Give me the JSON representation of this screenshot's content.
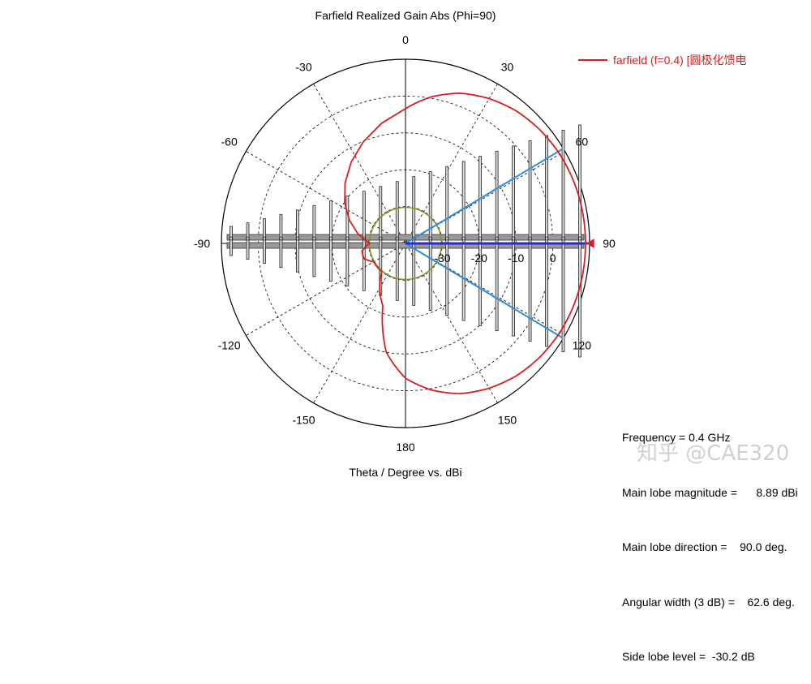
{
  "chart_data": {
    "type": "polar-line",
    "title": "Farfield Realized Gain Abs (Phi=90)",
    "xlabel": "Theta / Degree vs. dBi",
    "angle_ticks": [
      {
        "label": "0",
        "angle": 0
      },
      {
        "label": "30",
        "angle": 30
      },
      {
        "label": "60",
        "angle": 60
      },
      {
        "label": "90",
        "angle": 90
      },
      {
        "label": "120",
        "angle": 120
      },
      {
        "label": "150",
        "angle": 150
      },
      {
        "label": "180",
        "angle": 180
      },
      {
        "label": "-150",
        "angle": -150
      },
      {
        "label": "-120",
        "angle": -120
      },
      {
        "label": "-90",
        "angle": -90
      },
      {
        "label": "-60",
        "angle": -60
      },
      {
        "label": "-30",
        "angle": -30
      }
    ],
    "radial_ticks": [
      "-30",
      "-20",
      "-10",
      "0"
    ],
    "r_range": [
      -40,
      10
    ],
    "grid": true,
    "legend_position": "top-right",
    "series": [
      {
        "name": "farfield (f=0.4) [圆极化馈电",
        "color": "#d42020",
        "theta": [
          0,
          10,
          20,
          30,
          40,
          50,
          60,
          70,
          80,
          90,
          100,
          110,
          120,
          130,
          140,
          150,
          160,
          170,
          180,
          -170,
          -160,
          -150,
          -140,
          -130,
          -120,
          -110,
          -100,
          -90
        ],
        "gain": [
          -3.4,
          0.4,
          3.4,
          5.4,
          6.9,
          7.8,
          8.4,
          8.7,
          8.85,
          8.89,
          8.85,
          8.7,
          8.4,
          7.8,
          6.9,
          5.4,
          3.4,
          0.4,
          -3.4,
          -10,
          -22,
          -26,
          -30,
          -30,
          -30,
          -28,
          -28,
          -30.2
        ]
      }
    ],
    "beamwidth_3db": {
      "color": "#2f8fd8",
      "angles": [
        59,
        121
      ]
    },
    "main_lobe_marker": {
      "color": "#2a2ad0",
      "angle": 90
    },
    "sidelobe_circle": {
      "color": "#7a9a2a",
      "value": -30.2
    }
  },
  "info": {
    "frequency": "Frequency = 0.4 GHz",
    "main_lobe_magnitude": "Main lobe magnitude =      8.89 dBi",
    "main_lobe_direction": "Main lobe direction =    90.0 deg.",
    "angular_width": "Angular width (3 dB) =    62.6 deg.",
    "side_lobe_level": "Side lobe level =  -30.2 dB"
  },
  "watermark": "知乎 @CAE320"
}
